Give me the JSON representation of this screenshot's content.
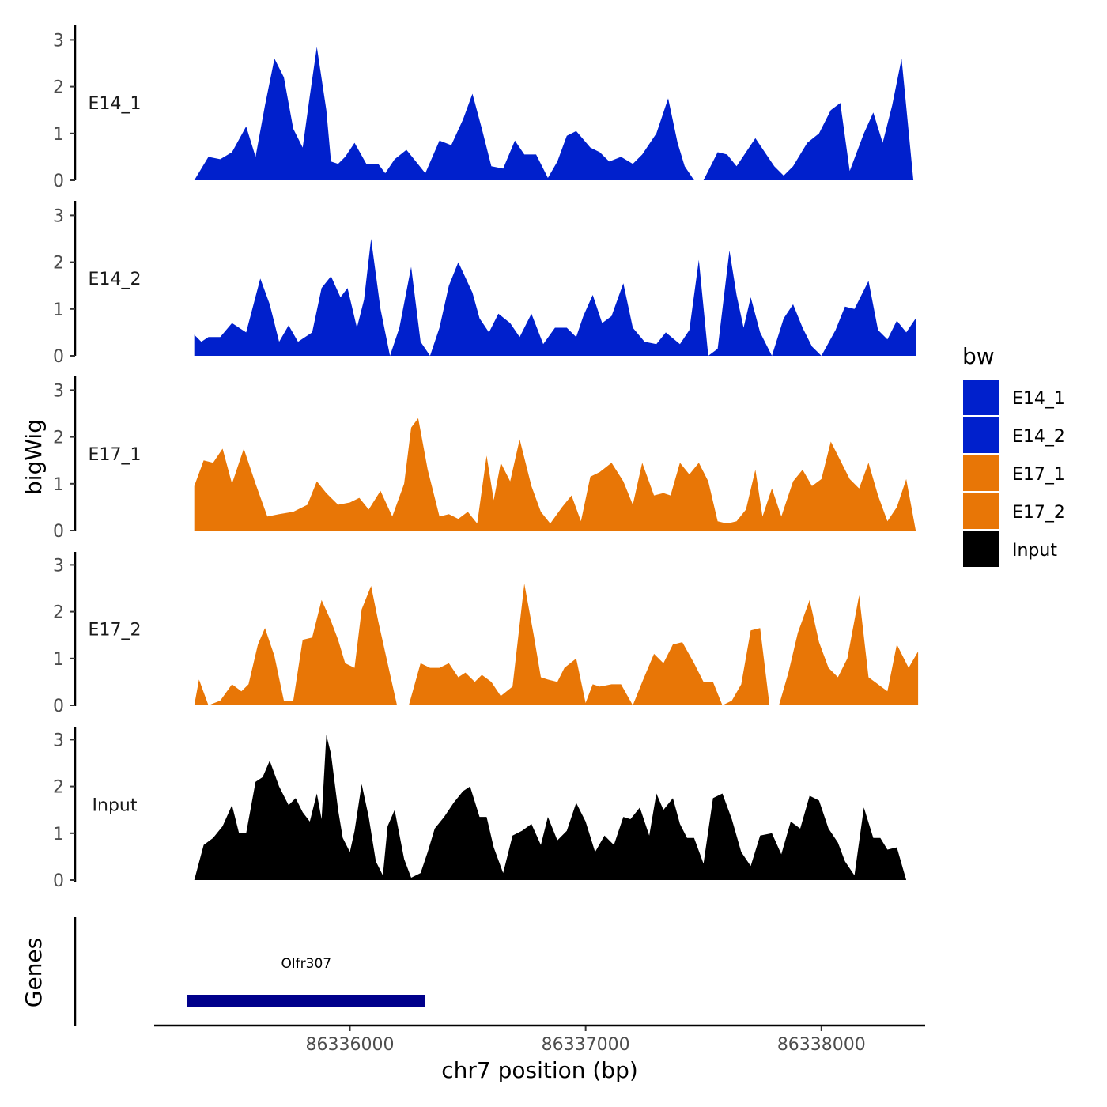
{
  "chart_data": {
    "type": "area",
    "title": "",
    "xlabel": "chr7 position (bp)",
    "ylabel": "bigWig",
    "genes_label": "Genes",
    "xlim": [
      86335170,
      86338440
    ],
    "x_ticks": [
      86336000,
      86337000,
      86338000
    ],
    "x_tick_labels": [
      "86336000",
      "86337000",
      "86338000"
    ],
    "ylim": [
      0,
      3.3
    ],
    "y_ticks": [
      0,
      1,
      2,
      3
    ],
    "y_tick_labels": [
      "0",
      "1",
      "2",
      "3"
    ],
    "grid": false,
    "legend": {
      "title": "bw",
      "position": "right"
    },
    "tracks": [
      {
        "name": "E14_1",
        "color": "#0020CC",
        "x": [
          86335340,
          86335400,
          86335450,
          86335500,
          86335560,
          86335600,
          86335640,
          86335680,
          86335720,
          86335760,
          86335800,
          86335830,
          86335860,
          86335900,
          86335920,
          86335950,
          86335980,
          86336020,
          86336070,
          86336120,
          86336150,
          86336190,
          86336240,
          86336280,
          86336320,
          86336380,
          86336430,
          86336480,
          86336520,
          86336560,
          86336600,
          86336650,
          86336700,
          86336740,
          86336790,
          86336840,
          86336880,
          86336920,
          86336960,
          86337020,
          86337060,
          86337100,
          86337150,
          86337200,
          86337240,
          86337300,
          86337350,
          86337390,
          86337420,
          86337460,
          86337500,
          86337560,
          86337600,
          86337640,
          86337680,
          86337720,
          86337760,
          86337800,
          86337840,
          86337880,
          86337940,
          86337990,
          86338040,
          86338080,
          86338120,
          86338180,
          86338220,
          86338260,
          86338300,
          86338340,
          86338390
        ],
        "y": [
          0.0,
          0.5,
          0.45,
          0.6,
          1.15,
          0.5,
          1.6,
          2.6,
          2.2,
          1.1,
          0.7,
          1.8,
          2.85,
          1.5,
          0.4,
          0.35,
          0.5,
          0.8,
          0.35,
          0.35,
          0.15,
          0.45,
          0.65,
          0.4,
          0.15,
          0.85,
          0.75,
          1.3,
          1.85,
          1.1,
          0.3,
          0.25,
          0.85,
          0.55,
          0.55,
          0.05,
          0.4,
          0.95,
          1.05,
          0.7,
          0.6,
          0.4,
          0.5,
          0.35,
          0.55,
          1.0,
          1.75,
          0.8,
          0.3,
          0.0,
          0.0,
          0.6,
          0.55,
          0.3,
          0.6,
          0.9,
          0.6,
          0.3,
          0.1,
          0.3,
          0.8,
          1.0,
          1.5,
          1.65,
          0.2,
          1.0,
          1.45,
          0.8,
          1.6,
          2.6,
          0.0
        ]
      },
      {
        "name": "E14_2",
        "color": "#0020CC",
        "x": [
          86335340,
          86335370,
          86335400,
          86335450,
          86335500,
          86335560,
          86335620,
          86335660,
          86335700,
          86335740,
          86335780,
          86335840,
          86335880,
          86335920,
          86335960,
          86335990,
          86336030,
          86336060,
          86336090,
          86336130,
          86336170,
          86336210,
          86336260,
          86336300,
          86336340,
          86336380,
          86336420,
          86336460,
          86336520,
          86336550,
          86336590,
          86336630,
          86336680,
          86336720,
          86336770,
          86336820,
          86336870,
          86336920,
          86336960,
          86336990,
          86337030,
          86337070,
          86337110,
          86337160,
          86337200,
          86337250,
          86337300,
          86337340,
          86337400,
          86337440,
          86337480,
          86337520,
          86337560,
          86337610,
          86337640,
          86337670,
          86337700,
          86337740,
          86337790,
          86337840,
          86337880,
          86337920,
          86337960,
          86338000,
          86338060,
          86338100,
          86338140,
          86338200,
          86338240,
          86338280,
          86338320,
          86338360,
          86338400
        ],
        "y": [
          0.45,
          0.3,
          0.4,
          0.4,
          0.7,
          0.5,
          1.65,
          1.1,
          0.3,
          0.65,
          0.3,
          0.5,
          1.45,
          1.7,
          1.25,
          1.45,
          0.6,
          1.2,
          2.5,
          1.0,
          0.0,
          0.6,
          1.9,
          0.3,
          0.0,
          0.6,
          1.5,
          2.0,
          1.35,
          0.8,
          0.5,
          0.9,
          0.7,
          0.4,
          0.9,
          0.25,
          0.6,
          0.6,
          0.4,
          0.85,
          1.3,
          0.7,
          0.85,
          1.55,
          0.6,
          0.3,
          0.25,
          0.5,
          0.25,
          0.55,
          2.05,
          0.0,
          0.15,
          2.25,
          1.3,
          0.6,
          1.25,
          0.5,
          0.0,
          0.8,
          1.1,
          0.6,
          0.2,
          0.0,
          0.55,
          1.05,
          1.0,
          1.6,
          0.55,
          0.35,
          0.75,
          0.5,
          0.8
        ]
      },
      {
        "name": "E17_1",
        "color": "#E87606",
        "x": [
          86335340,
          86335380,
          86335420,
          86335460,
          86335500,
          86335550,
          86335600,
          86335650,
          86335700,
          86335760,
          86335820,
          86335860,
          86335900,
          86335950,
          86336000,
          86336040,
          86336080,
          86336130,
          86336180,
          86336230,
          86336260,
          86336290,
          86336330,
          86336380,
          86336420,
          86336460,
          86336500,
          86336540,
          86336580,
          86336610,
          86336640,
          86336680,
          86336720,
          86336770,
          86336810,
          86336850,
          86336900,
          86336940,
          86336980,
          86337020,
          86337060,
          86337110,
          86337160,
          86337200,
          86337240,
          86337290,
          86337330,
          86337360,
          86337400,
          86337440,
          86337480,
          86337520,
          86337560,
          86337600,
          86337640,
          86337680,
          86337720,
          86337750,
          86337790,
          86337830,
          86337880,
          86337920,
          86337960,
          86338000,
          86338040,
          86338080,
          86338120,
          86338160,
          86338200,
          86338240,
          86338280,
          86338320,
          86338360,
          86338400
        ],
        "y": [
          0.95,
          1.5,
          1.45,
          1.75,
          1.0,
          1.75,
          1.0,
          0.3,
          0.35,
          0.4,
          0.55,
          1.05,
          0.8,
          0.55,
          0.6,
          0.7,
          0.45,
          0.85,
          0.3,
          1.0,
          2.2,
          2.4,
          1.3,
          0.3,
          0.35,
          0.25,
          0.4,
          0.15,
          1.6,
          0.65,
          1.45,
          1.05,
          1.95,
          0.95,
          0.4,
          0.15,
          0.5,
          0.75,
          0.2,
          1.15,
          1.25,
          1.45,
          1.05,
          0.55,
          1.45,
          0.75,
          0.8,
          0.75,
          1.45,
          1.2,
          1.45,
          1.05,
          0.2,
          0.15,
          0.2,
          0.45,
          1.3,
          0.3,
          0.9,
          0.3,
          1.05,
          1.3,
          0.95,
          1.1,
          1.9,
          1.5,
          1.1,
          0.9,
          1.45,
          0.75,
          0.2,
          0.5,
          1.1,
          0.0
        ]
      },
      {
        "name": "E17_2",
        "color": "#E87606",
        "x": [
          86335340,
          86335360,
          86335400,
          86335450,
          86335500,
          86335540,
          86335570,
          86335610,
          86335640,
          86335680,
          86335720,
          86335760,
          86335800,
          86335840,
          86335880,
          86335920,
          86335950,
          86335980,
          86336020,
          86336050,
          86336090,
          86336120,
          86336160,
          86336200,
          86336250,
          86336300,
          86336340,
          86336380,
          86336420,
          86336460,
          86336490,
          86336530,
          86336560,
          86336600,
          86336640,
          86336690,
          86336740,
          86336780,
          86336810,
          86336840,
          86336880,
          86336910,
          86336960,
          86337000,
          86337030,
          86337060,
          86337110,
          86337150,
          86337200,
          86337240,
          86337290,
          86337330,
          86337370,
          86337410,
          86337460,
          86337500,
          86337540,
          86337580,
          86337620,
          86337660,
          86337700,
          86337740,
          86337780,
          86337820,
          86337860,
          86337900,
          86337950,
          86337990,
          86338030,
          86338070,
          86338110,
          86338160,
          86338200,
          86338240,
          86338280,
          86338320,
          86338370,
          86338410
        ],
        "y": [
          0.0,
          0.55,
          0.0,
          0.1,
          0.45,
          0.3,
          0.45,
          1.3,
          1.65,
          1.05,
          0.1,
          0.1,
          1.4,
          1.45,
          2.25,
          1.8,
          1.4,
          0.9,
          0.8,
          2.05,
          2.55,
          1.8,
          0.9,
          0.0,
          0.0,
          0.9,
          0.8,
          0.8,
          0.9,
          0.6,
          0.7,
          0.5,
          0.65,
          0.5,
          0.2,
          0.4,
          2.6,
          1.5,
          0.6,
          0.55,
          0.5,
          0.8,
          1.0,
          0.05,
          0.45,
          0.4,
          0.45,
          0.45,
          0.0,
          0.5,
          1.1,
          0.9,
          1.3,
          1.35,
          0.9,
          0.5,
          0.5,
          0.0,
          0.1,
          0.45,
          1.6,
          1.65,
          0.0,
          0.0,
          0.7,
          1.55,
          2.25,
          1.35,
          0.8,
          0.6,
          1.0,
          2.35,
          0.6,
          0.45,
          0.3,
          1.3,
          0.8,
          1.15
        ]
      },
      {
        "name": "Input",
        "color": "#000000",
        "x": [
          86335340,
          86335380,
          86335420,
          86335460,
          86335500,
          86335530,
          86335560,
          86335600,
          86335630,
          86335660,
          86335700,
          86335740,
          86335770,
          86335800,
          86335830,
          86335860,
          86335880,
          86335900,
          86335920,
          86335950,
          86335970,
          86336000,
          86336020,
          86336050,
          86336080,
          86336110,
          86336140,
          86336160,
          86336190,
          86336230,
          86336260,
          86336300,
          86336330,
          86336360,
          86336400,
          86336440,
          86336480,
          86336510,
          86336550,
          86336580,
          86336610,
          86336650,
          86336690,
          86336730,
          86336770,
          86336810,
          86336840,
          86336880,
          86336920,
          86336960,
          86337000,
          86337040,
          86337080,
          86337120,
          86337160,
          86337190,
          86337230,
          86337270,
          86337300,
          86337330,
          86337370,
          86337400,
          86337430,
          86337460,
          86337500,
          86337540,
          86337580,
          86337620,
          86337660,
          86337700,
          86337740,
          86337790,
          86337830,
          86337870,
          86337910,
          86337950,
          86337990,
          86338030,
          86338070,
          86338100,
          86338140,
          86338180,
          86338220,
          86338250,
          86338280,
          86338320,
          86338360,
          86338400
        ],
        "y": [
          0.0,
          0.75,
          0.9,
          1.15,
          1.6,
          1.0,
          1.0,
          2.1,
          2.2,
          2.55,
          2.0,
          1.6,
          1.75,
          1.45,
          1.25,
          1.85,
          1.3,
          3.1,
          2.7,
          1.5,
          0.9,
          0.6,
          1.05,
          2.05,
          1.35,
          0.4,
          0.1,
          1.15,
          1.5,
          0.45,
          0.05,
          0.15,
          0.6,
          1.1,
          1.35,
          1.65,
          1.9,
          2.0,
          1.35,
          1.35,
          0.7,
          0.15,
          0.95,
          1.05,
          1.2,
          0.75,
          1.35,
          0.85,
          1.05,
          1.65,
          1.25,
          0.6,
          0.95,
          0.75,
          1.35,
          1.3,
          1.55,
          0.95,
          1.85,
          1.5,
          1.75,
          1.2,
          0.9,
          0.9,
          0.35,
          1.75,
          1.85,
          1.3,
          0.6,
          0.3,
          0.95,
          1.0,
          0.55,
          1.25,
          1.1,
          1.8,
          1.7,
          1.1,
          0.8,
          0.4,
          0.1,
          1.55,
          0.9,
          0.9,
          0.65,
          0.7,
          0.0,
          0.0
        ]
      }
    ],
    "genes": [
      {
        "name": "Olfr307",
        "start": 86335310,
        "end": 86336320
      }
    ]
  }
}
